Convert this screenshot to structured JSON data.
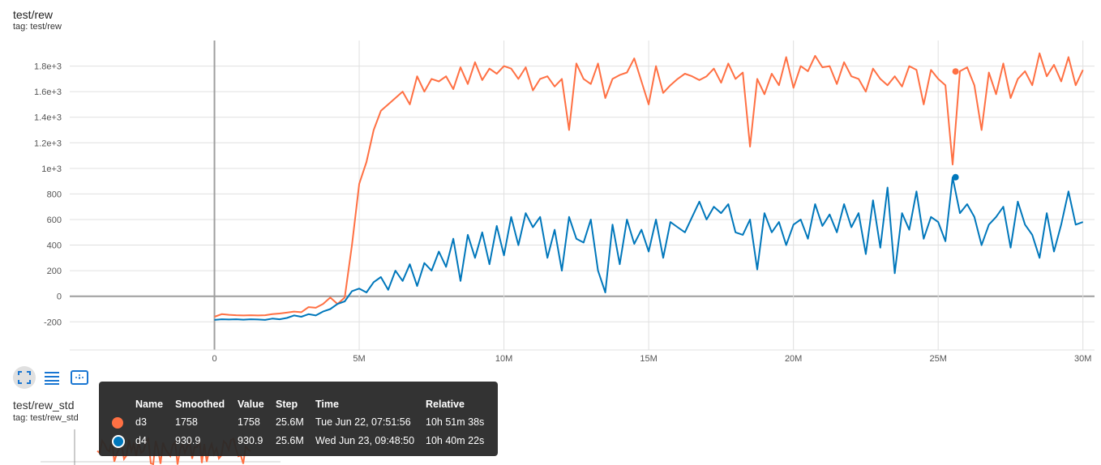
{
  "card": {
    "title": "test/rew",
    "tag": "tag: test/rew"
  },
  "card2": {
    "title": "test/rew_std",
    "tag": "tag: test/rew_std"
  },
  "toolbar": {
    "icons": [
      "fullscreen-icon",
      "list-icon",
      "fit-domain-icon"
    ]
  },
  "colors": {
    "d3": "#ff7043",
    "d4": "#0077bb"
  },
  "tooltip": {
    "headers": [
      "Name",
      "Smoothed",
      "Value",
      "Step",
      "Time",
      "Relative"
    ],
    "rows": [
      {
        "name": "d3",
        "smoothed": "1758",
        "value": "1758",
        "step": "25.6M",
        "time": "Tue Jun 22, 07:51:56",
        "relative": "10h 51m 38s"
      },
      {
        "name": "d4",
        "smoothed": "930.9",
        "value": "930.9",
        "step": "25.6M",
        "time": "Wed Jun 23, 09:48:50",
        "relative": "10h 40m 22s"
      }
    ]
  },
  "chart_data": {
    "type": "line",
    "title": "test/rew",
    "xlabel": "",
    "ylabel": "",
    "xlim": [
      -5000000,
      30400000
    ],
    "ylim": [
      -420,
      2000
    ],
    "grid": true,
    "x_ticks": [
      {
        "v": 0,
        "label": "0"
      },
      {
        "v": 5000000,
        "label": "5M"
      },
      {
        "v": 10000000,
        "label": "10M"
      },
      {
        "v": 15000000,
        "label": "15M"
      },
      {
        "v": 20000000,
        "label": "20M"
      },
      {
        "v": 25000000,
        "label": "25M"
      },
      {
        "v": 30000000,
        "label": "30M"
      }
    ],
    "y_ticks": [
      {
        "v": -200,
        "label": "-200"
      },
      {
        "v": 0,
        "label": "0"
      },
      {
        "v": 200,
        "label": "200"
      },
      {
        "v": 400,
        "label": "400"
      },
      {
        "v": 600,
        "label": "600"
      },
      {
        "v": 800,
        "label": "800"
      },
      {
        "v": 1000,
        "label": "1e+3"
      },
      {
        "v": 1200,
        "label": "1.2e+3"
      },
      {
        "v": 1400,
        "label": "1.4e+3"
      },
      {
        "v": 1600,
        "label": "1.6e+3"
      },
      {
        "v": 1800,
        "label": "1.8e+3"
      }
    ],
    "x_step_millions": [
      0,
      0.25,
      0.5,
      0.75,
      1,
      1.25,
      1.5,
      1.75,
      2,
      2.25,
      2.5,
      2.75,
      3,
      3.25,
      3.5,
      3.75,
      4,
      4.25,
      4.5,
      4.75,
      5,
      5.25,
      5.5,
      5.75,
      6,
      6.25,
      6.5,
      6.75,
      7,
      7.25,
      7.5,
      7.75,
      8,
      8.25,
      8.5,
      8.75,
      9,
      9.25,
      9.5,
      9.75,
      10,
      10.25,
      10.5,
      10.75,
      11,
      11.25,
      11.5,
      11.75,
      12,
      12.25,
      12.5,
      12.75,
      13,
      13.25,
      13.5,
      13.75,
      14,
      14.25,
      14.5,
      14.75,
      15,
      15.25,
      15.5,
      15.75,
      16,
      16.25,
      16.5,
      16.75,
      17,
      17.25,
      17.5,
      17.75,
      18,
      18.25,
      18.5,
      18.75,
      19,
      19.25,
      19.5,
      19.75,
      20,
      20.25,
      20.5,
      20.75,
      21,
      21.25,
      21.5,
      21.75,
      22,
      22.25,
      22.5,
      22.75,
      23,
      23.25,
      23.5,
      23.75,
      24,
      24.25,
      24.5,
      24.75,
      25,
      25.25,
      25.5,
      25.75,
      26,
      26.25,
      26.5,
      26.75,
      27,
      27.25,
      27.5,
      27.75,
      28,
      28.25,
      28.5,
      28.75,
      29,
      29.25,
      29.5,
      29.75,
      30
    ],
    "series": [
      {
        "name": "d3",
        "values": [
          -160,
          -140,
          -145,
          -148,
          -150,
          -148,
          -150,
          -148,
          -140,
          -135,
          -128,
          -120,
          -125,
          -85,
          -90,
          -60,
          -10,
          -60,
          -10,
          400,
          880,
          1050,
          1300,
          1450,
          1500,
          1550,
          1600,
          1500,
          1720,
          1600,
          1700,
          1680,
          1720,
          1620,
          1790,
          1660,
          1830,
          1690,
          1780,
          1740,
          1800,
          1780,
          1700,
          1790,
          1610,
          1700,
          1720,
          1640,
          1700,
          1300,
          1820,
          1700,
          1660,
          1820,
          1550,
          1700,
          1730,
          1750,
          1860,
          1680,
          1500,
          1800,
          1590,
          1650,
          1700,
          1740,
          1720,
          1690,
          1720,
          1780,
          1670,
          1820,
          1700,
          1750,
          1170,
          1700,
          1580,
          1740,
          1650,
          1870,
          1630,
          1800,
          1760,
          1880,
          1790,
          1800,
          1660,
          1830,
          1720,
          1700,
          1600,
          1780,
          1700,
          1650,
          1720,
          1640,
          1800,
          1770,
          1500,
          1770,
          1700,
          1650,
          1030,
          1760,
          1790,
          1650,
          1300,
          1750,
          1580,
          1820,
          1550,
          1700,
          1760,
          1650,
          1900,
          1720,
          1810,
          1680,
          1870,
          1650,
          1770
        ]
      },
      {
        "name": "d4",
        "values": [
          -185,
          -180,
          -182,
          -180,
          -183,
          -180,
          -182,
          -185,
          -175,
          -180,
          -170,
          -150,
          -160,
          -140,
          -150,
          -120,
          -100,
          -60,
          -40,
          40,
          60,
          30,
          110,
          150,
          50,
          200,
          120,
          250,
          80,
          260,
          200,
          350,
          230,
          450,
          120,
          480,
          300,
          500,
          250,
          550,
          320,
          620,
          400,
          650,
          540,
          620,
          300,
          520,
          200,
          620,
          450,
          420,
          600,
          200,
          30,
          560,
          250,
          600,
          410,
          520,
          350,
          600,
          300,
          580,
          540,
          500,
          620,
          740,
          600,
          700,
          650,
          720,
          500,
          480,
          600,
          210,
          650,
          500,
          580,
          400,
          560,
          600,
          450,
          720,
          550,
          640,
          500,
          720,
          540,
          650,
          330,
          750,
          380,
          850,
          180,
          650,
          520,
          820,
          450,
          620,
          580,
          430,
          930,
          650,
          720,
          620,
          400,
          560,
          620,
          700,
          380,
          740,
          560,
          480,
          300,
          650,
          350,
          560,
          820,
          560,
          580
        ]
      }
    ],
    "hover": {
      "step_millions": 25.6,
      "d3": 1758,
      "d4": 930.9
    }
  }
}
